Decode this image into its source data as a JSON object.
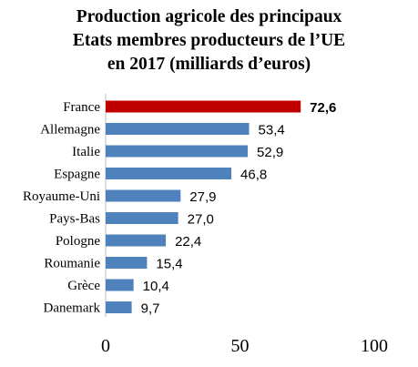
{
  "chart_data": {
    "type": "bar",
    "orientation": "horizontal",
    "title_lines": [
      "Production agricole des principaux",
      "Etats membres producteurs de l’UE",
      "en 2017 (milliards d’euros)"
    ],
    "categories": [
      "France",
      "Allemagne",
      "Italie",
      "Espagne",
      "Royaume-Uni",
      "Pays-Bas",
      "Pologne",
      "Roumanie",
      "Grèce",
      "Danemark"
    ],
    "values": [
      72.6,
      53.4,
      52.9,
      46.8,
      27.9,
      27.0,
      22.4,
      15.4,
      10.4,
      9.7
    ],
    "value_labels": [
      "72,6",
      "53,4",
      "52,9",
      "46,8",
      "27,9",
      "27,0",
      "22,4",
      "15,4",
      "10,4",
      "9,7"
    ],
    "highlighted_category": "France",
    "xlim": [
      0,
      100
    ],
    "x_ticks": [
      0,
      50,
      100
    ],
    "x_tick_labels": [
      "0",
      "50",
      "100"
    ],
    "grid": false,
    "legend": "none",
    "colors": {
      "bar": "#4F81BD",
      "highlight": "#C00000",
      "axis": "#BFBFBF"
    }
  }
}
